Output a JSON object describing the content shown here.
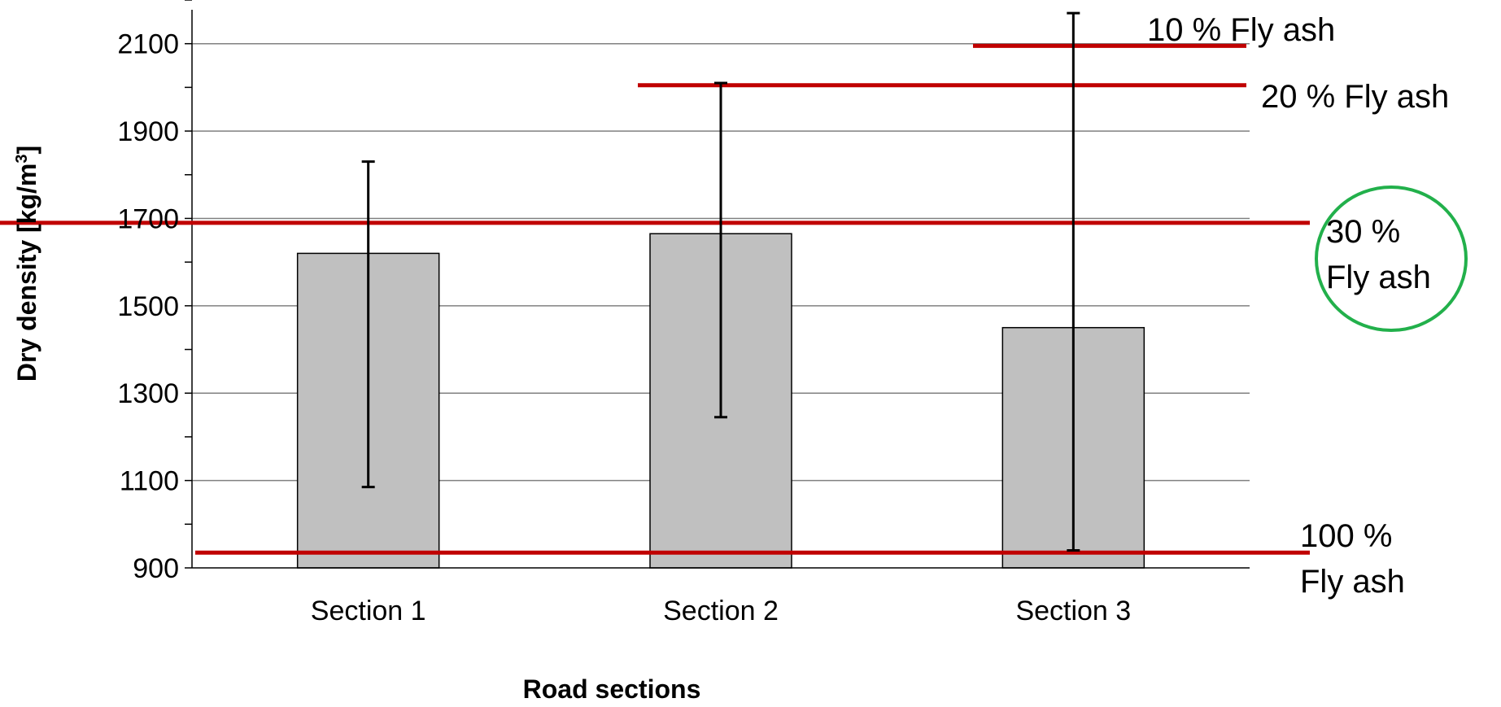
{
  "chart_data": {
    "type": "bar",
    "title": "",
    "xlabel": "Road sections",
    "ylabel_main": "Dry density  [kg/m",
    "ylabel_sup": "3",
    "ylabel_end": "]",
    "ylim": [
      900,
      2200
    ],
    "yticks": [
      900,
      1100,
      1300,
      1500,
      1700,
      1900,
      2100
    ],
    "grid": true,
    "categories": [
      "Section 1",
      "Section 2",
      "Section 3"
    ],
    "values": [
      1620,
      1665,
      1450
    ],
    "error_bars": [
      {
        "low": 1085,
        "high": 1830
      },
      {
        "low": 1245,
        "high": 2010
      },
      {
        "low": 940,
        "high": 2170
      }
    ],
    "reference_lines": [
      {
        "value": 2095,
        "label_lines": [
          "10 % Fly ash"
        ],
        "highlighted": false
      },
      {
        "value": 2005,
        "label_lines": [
          "20 % Fly ash"
        ],
        "highlighted": false
      },
      {
        "value": 1690,
        "label_lines": [
          "30 %",
          "Fly ash"
        ],
        "highlighted": true
      },
      {
        "value": 935,
        "label_lines": [
          "100 %",
          "Fly ash"
        ],
        "highlighted": false
      }
    ],
    "colors": {
      "bar_fill": "#c0c0c0",
      "bar_stroke": "#000000",
      "gridline": "#808080",
      "reference_line": "#c00000",
      "highlight_circle": "#22b04b",
      "error_bar": "#000000"
    }
  }
}
